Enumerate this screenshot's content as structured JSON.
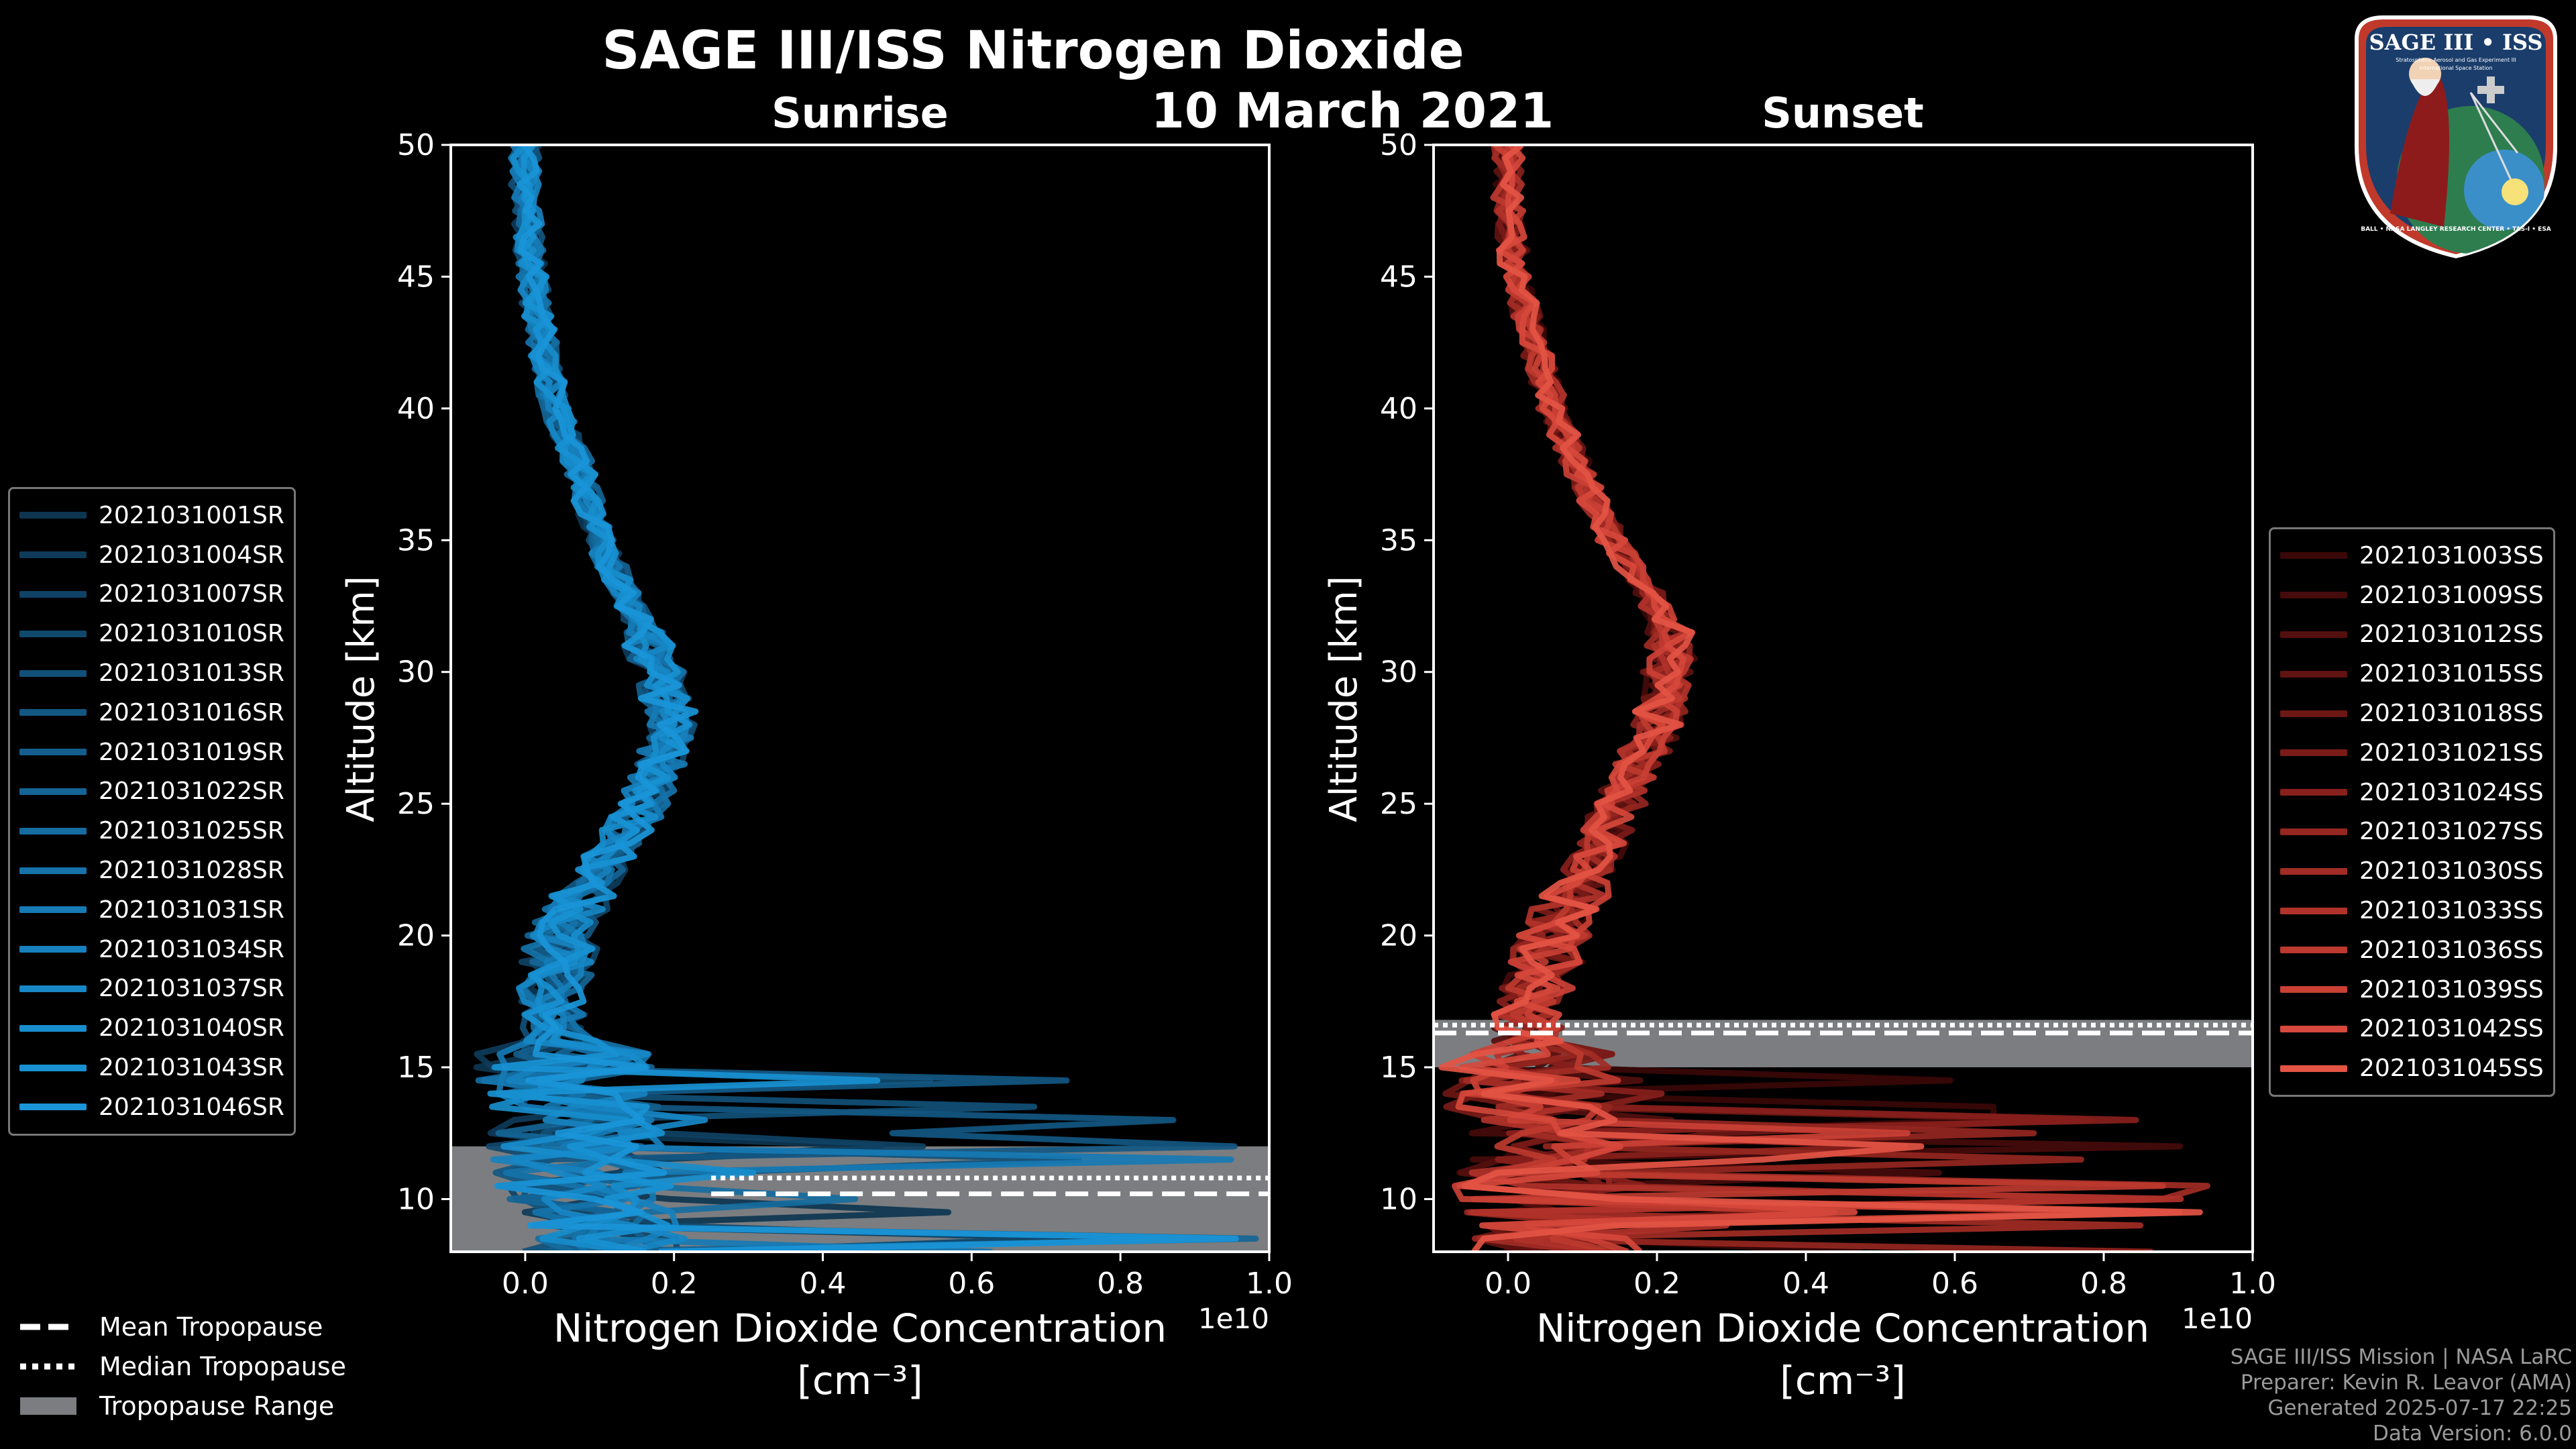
{
  "title": "SAGE III/ISS Nitrogen Dioxide",
  "date": "10 March 2021",
  "logo": {
    "title": "SAGE III • ISS",
    "subtitle_1": "Stratospheric Aerosol and Gas Experiment III",
    "subtitle_2": "International Space Station",
    "ring_text": "BALL • NASA LANGLEY RESEARCH CENTER • TAS-I • ESA"
  },
  "chart_data": [
    {
      "type": "line",
      "panel": "left",
      "title": "Sunrise",
      "xlabel_line1": "Nitrogen Dioxide Concentration",
      "xlabel_line2": "[cm⁻³]",
      "ylabel": "Altitude [km]",
      "x_scale_label": "1e10",
      "xlim": [
        -0.1,
        1.0
      ],
      "ylim": [
        8,
        50
      ],
      "x_ticks": [
        "0.0",
        "0.2",
        "0.4",
        "0.6",
        "0.8",
        "1.0"
      ],
      "x_tick_values": [
        0.0,
        0.2,
        0.4,
        0.6,
        0.8,
        1.0
      ],
      "y_ticks": [
        "10",
        "15",
        "20",
        "25",
        "30",
        "35",
        "40",
        "45",
        "50"
      ],
      "y_tick_values": [
        10,
        15,
        20,
        25,
        30,
        35,
        40,
        45,
        50
      ],
      "base_profile": [
        [
          8,
          0.1
        ],
        [
          10,
          0.08
        ],
        [
          12,
          0.07
        ],
        [
          15,
          0.05
        ],
        [
          18,
          0.04
        ],
        [
          20,
          0.05
        ],
        [
          22,
          0.09
        ],
        [
          25,
          0.16
        ],
        [
          28,
          0.2
        ],
        [
          30,
          0.18
        ],
        [
          32,
          0.15
        ],
        [
          35,
          0.1
        ],
        [
          38,
          0.07
        ],
        [
          40,
          0.04
        ],
        [
          43,
          0.02
        ],
        [
          45,
          0.01
        ],
        [
          48,
          0.0
        ],
        [
          50,
          0.0
        ]
      ],
      "legend_placement": "left",
      "series": [
        {
          "name": "2021031001SR",
          "color": "#0d3550"
        },
        {
          "name": "2021031004SR",
          "color": "#0e3b5a"
        },
        {
          "name": "2021031007SR",
          "color": "#0f4264"
        },
        {
          "name": "2021031010SR",
          "color": "#10496e"
        },
        {
          "name": "2021031013SR",
          "color": "#115078"
        },
        {
          "name": "2021031016SR",
          "color": "#125782"
        },
        {
          "name": "2021031019SR",
          "color": "#135e8c"
        },
        {
          "name": "2021031022SR",
          "color": "#146596"
        },
        {
          "name": "2021031025SR",
          "color": "#156ca0"
        },
        {
          "name": "2021031028SR",
          "color": "#1573aa"
        },
        {
          "name": "2021031031SR",
          "color": "#167ab4"
        },
        {
          "name": "2021031034SR",
          "color": "#1781be"
        },
        {
          "name": "2021031037SR",
          "color": "#1787c6"
        },
        {
          "name": "2021031040SR",
          "color": "#178dcc"
        },
        {
          "name": "2021031043SR",
          "color": "#1891d2"
        },
        {
          "name": "2021031046SR",
          "color": "#1a95d8"
        }
      ],
      "tropopause": {
        "mean_km": 10.2,
        "median_km": 10.8,
        "range_km": [
          8.0,
          12.0
        ],
        "mean_x_start": 0.25,
        "median_x_start": 0.25
      }
    },
    {
      "type": "line",
      "panel": "right",
      "title": "Sunset",
      "xlabel_line1": "Nitrogen Dioxide Concentration",
      "xlabel_line2": "[cm⁻³]",
      "ylabel": "Altitude [km]",
      "x_scale_label": "1e10",
      "xlim": [
        -0.1,
        1.0
      ],
      "ylim": [
        8,
        50
      ],
      "x_ticks": [
        "0.0",
        "0.2",
        "0.4",
        "0.6",
        "0.8",
        "1.0"
      ],
      "x_tick_values": [
        0.0,
        0.2,
        0.4,
        0.6,
        0.8,
        1.0
      ],
      "y_ticks": [
        "10",
        "15",
        "20",
        "25",
        "30",
        "35",
        "40",
        "45",
        "50"
      ],
      "y_tick_values": [
        10,
        15,
        20,
        25,
        30,
        35,
        40,
        45,
        50
      ],
      "base_profile": [
        [
          8,
          0.06
        ],
        [
          10,
          0.05
        ],
        [
          12,
          0.04
        ],
        [
          15,
          0.03
        ],
        [
          17,
          0.03
        ],
        [
          20,
          0.06
        ],
        [
          22,
          0.1
        ],
        [
          25,
          0.15
        ],
        [
          28,
          0.2
        ],
        [
          31,
          0.22
        ],
        [
          33,
          0.19
        ],
        [
          35,
          0.14
        ],
        [
          38,
          0.09
        ],
        [
          40,
          0.06
        ],
        [
          43,
          0.03
        ],
        [
          45,
          0.01
        ],
        [
          48,
          0.0
        ],
        [
          50,
          0.0
        ]
      ],
      "legend_placement": "right",
      "series": [
        {
          "name": "2021031003SS",
          "color": "#3a0808"
        },
        {
          "name": "2021031009SS",
          "color": "#460b0b"
        },
        {
          "name": "2021031012SS",
          "color": "#530f0e"
        },
        {
          "name": "2021031015SS",
          "color": "#601311"
        },
        {
          "name": "2021031018SS",
          "color": "#6d1714"
        },
        {
          "name": "2021031021SS",
          "color": "#7a1b18"
        },
        {
          "name": "2021031024SS",
          "color": "#88201c"
        },
        {
          "name": "2021031027SS",
          "color": "#952620"
        },
        {
          "name": "2021031030SS",
          "color": "#a22c25"
        },
        {
          "name": "2021031033SS",
          "color": "#b0322a"
        },
        {
          "name": "2021031036SS",
          "color": "#bd392f"
        },
        {
          "name": "2021031039SS",
          "color": "#ca4035"
        },
        {
          "name": "2021031042SS",
          "color": "#d6483b"
        },
        {
          "name": "2021031045SS",
          "color": "#e35444"
        }
      ],
      "tropopause": {
        "mean_km": 16.3,
        "median_km": 16.6,
        "range_km": [
          15.0,
          16.8
        ],
        "mean_x_start": -0.1,
        "median_x_start": -0.1
      }
    }
  ],
  "tropopause_legend": {
    "mean": "Mean Tropopause",
    "median": "Median Tropopause",
    "range": "Tropopause Range"
  },
  "footer": {
    "line1": "SAGE III/ISS Mission | NASA LaRC",
    "line2": "Preparer: Kevin R. Leavor (AMA)",
    "line3": "Generated 2025-07-17 22:25",
    "line4": "Data Version: 6.0.0"
  },
  "colors": {
    "background": "#000000",
    "axis": "#ffffff",
    "range": "#7b7d80"
  }
}
